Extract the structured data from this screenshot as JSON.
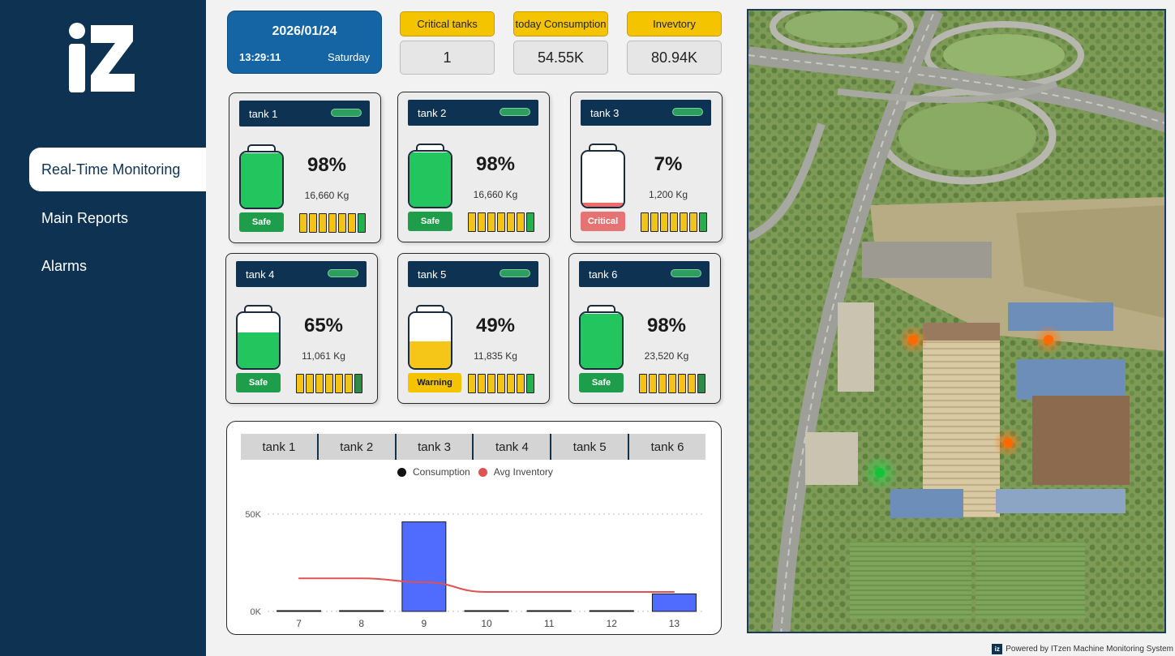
{
  "sidebar": {
    "logo_text": "iz",
    "nav": [
      {
        "label": "Real-Time Monitoring",
        "active": true
      },
      {
        "label": "Main Reports",
        "active": false
      },
      {
        "label": "Alarms",
        "active": false
      }
    ]
  },
  "datetime": {
    "date": "2026/01/24",
    "time": "13:29:11",
    "day": "Saturday"
  },
  "kpis": [
    {
      "label": "Critical tanks",
      "value": "1"
    },
    {
      "label": "today Consumption",
      "value": "54.55K"
    },
    {
      "label": "Invevtory",
      "value": "80.94K"
    }
  ],
  "tanks": [
    {
      "name": "tank 1",
      "percent": "98%",
      "level": 0.98,
      "weight": "16,660 Kg",
      "status": "Safe",
      "fill_color": "#22c55e"
    },
    {
      "name": "tank 2",
      "percent": "98%",
      "level": 0.98,
      "weight": "16,660 Kg",
      "status": "Safe",
      "fill_color": "#22c55e"
    },
    {
      "name": "tank 3",
      "percent": "7%",
      "level": 0.07,
      "weight": "1,200 Kg",
      "status": "Critical",
      "fill_color": "#ef6b6b"
    },
    {
      "name": "tank 4",
      "percent": "65%",
      "level": 0.65,
      "weight": "11,061 Kg",
      "status": "Safe",
      "fill_color": "#22c55e"
    },
    {
      "name": "tank 5",
      "percent": "49%",
      "level": 0.49,
      "weight": "11,835 Kg",
      "status": "Warning",
      "fill_color": "#f5c518"
    },
    {
      "name": "tank 6",
      "percent": "98%",
      "level": 0.98,
      "weight": "23,520 Kg",
      "status": "Safe",
      "fill_color": "#22c55e"
    }
  ],
  "chart_tabs": [
    "tank 1",
    "tank 2",
    "tank 3",
    "tank 4",
    "tank 5",
    "tank 6"
  ],
  "chart_data": {
    "type": "bar",
    "categories": [
      "7",
      "8",
      "9",
      "10",
      "11",
      "12",
      "13"
    ],
    "series": [
      {
        "name": "Consumption",
        "type": "bar",
        "color": "#4f6cff",
        "values": [
          400,
          400,
          46000,
          400,
          400,
          400,
          9000
        ]
      },
      {
        "name": "Avg Inventory",
        "type": "line",
        "color": "#e05252",
        "values": [
          17000,
          17000,
          15000,
          10000,
          10000,
          10000,
          10000
        ]
      }
    ],
    "yticks": [
      "0K",
      "50K"
    ],
    "ylim": [
      0,
      50000
    ],
    "legend": "top",
    "grid": true
  },
  "footer": {
    "text": "Powered by ITzen Machine Monitoring System",
    "mini_logo": "iz"
  }
}
